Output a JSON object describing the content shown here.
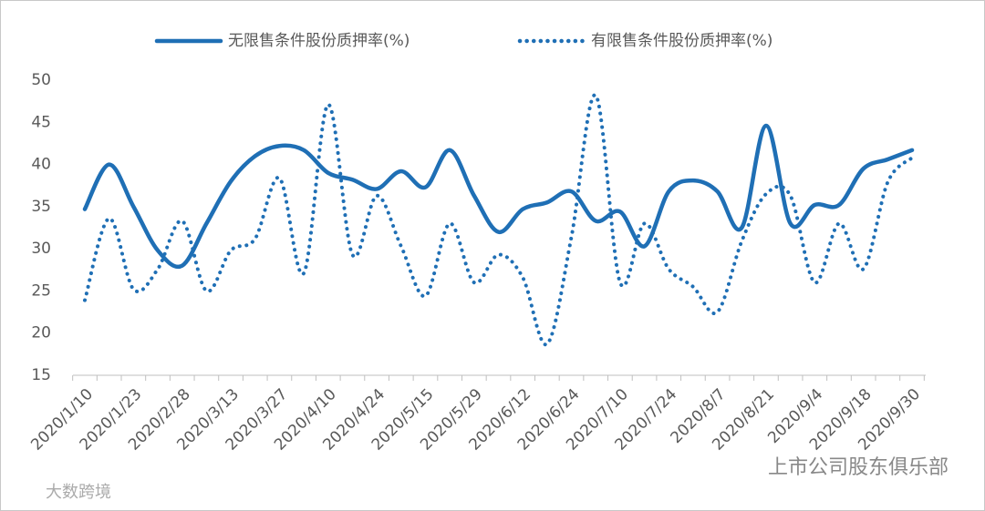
{
  "chart_data": {
    "type": "line",
    "categories": [
      "2020/1/10",
      null,
      "2020/1/23",
      null,
      "2020/2/28",
      null,
      "2020/3/13",
      null,
      "2020/3/27",
      null,
      "2020/4/10",
      null,
      "2020/4/24",
      null,
      "2020/5/15",
      null,
      "2020/5/29",
      null,
      "2020/6/12",
      null,
      "2020/6/24",
      null,
      "2020/7/10",
      null,
      "2020/7/24",
      null,
      "2020/8/7",
      null,
      "2020/8/21",
      null,
      "2020/9/4",
      null,
      "2020/9/18",
      null,
      "2020/9/30"
    ],
    "series": [
      {
        "name": "无限售条件股份质押率(%)",
        "color": "#1f6fb5",
        "style": "solid",
        "values": [
          34.7,
          40,
          35,
          29.8,
          28,
          33,
          38,
          41,
          42.2,
          41.7,
          39,
          38.2,
          37.1,
          39.2,
          37.3,
          41.7,
          36.3,
          32,
          34.7,
          35.5,
          36.8,
          33.3,
          34.4,
          30.3,
          36.8,
          38.1,
          36.8,
          32.5,
          44.6,
          33,
          35.2,
          35.2,
          39.5,
          40.6,
          41.7
        ]
      },
      {
        "name": "有限售条件股份质押率(%)",
        "color": "#1f6fb5",
        "style": "dotted",
        "values": [
          23.9,
          33.6,
          25.2,
          27.6,
          33.3,
          25,
          29.8,
          31.2,
          38.4,
          27.1,
          47.1,
          29.3,
          36.3,
          30.3,
          24.4,
          33,
          26,
          29.3,
          26.6,
          18.7,
          31.4,
          48.2,
          26,
          33,
          27.6,
          25.5,
          22.5,
          30.9,
          36.5,
          36.3,
          26,
          33,
          27.6,
          37.9,
          40.8
        ]
      }
    ],
    "ylim": [
      15,
      50
    ],
    "yticks": [
      15,
      20,
      25,
      30,
      35,
      40,
      45,
      50
    ],
    "legend": "top",
    "grid": false,
    "smooth": true,
    "watermarks": [
      "上市公司股东俱乐部",
      "大数跨境"
    ]
  }
}
